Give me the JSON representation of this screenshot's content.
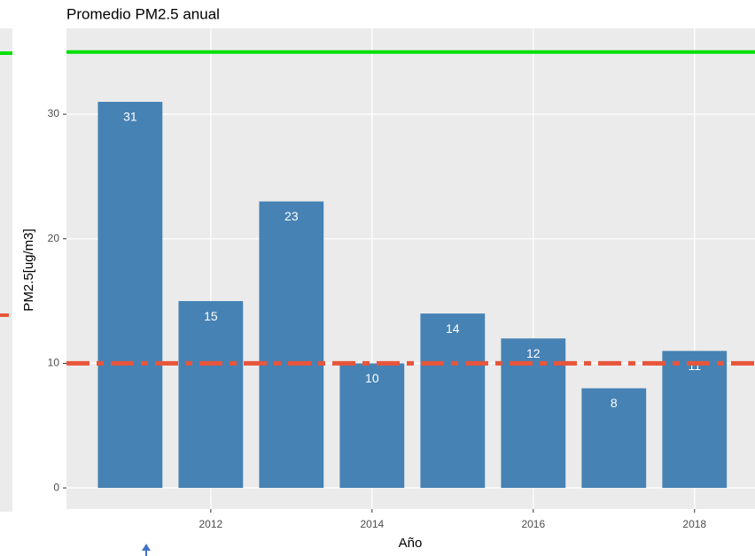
{
  "chart_data": {
    "type": "bar",
    "title": "Promedio PM2.5 anual",
    "x_label": "Año",
    "y_label": "PM2.5[ug/m3]",
    "x": [
      2011,
      2012,
      2013,
      2014,
      2015,
      2016,
      2017,
      2018
    ],
    "values": [
      31,
      15,
      23,
      10,
      14,
      12,
      8,
      11
    ],
    "color": "#4682b4",
    "xlim": [
      2010.21,
      2018.75
    ],
    "xticks": [
      2012,
      2014,
      2016,
      2018
    ],
    "ylim": [
      -1.7,
      36.9
    ],
    "yticks": [
      0,
      10,
      20,
      30
    ],
    "grid": true,
    "hlines": [
      {
        "value": 35,
        "color": "#00e000"
      },
      {
        "value": 10,
        "color": "#e8553a",
        "dashed": true
      }
    ]
  }
}
